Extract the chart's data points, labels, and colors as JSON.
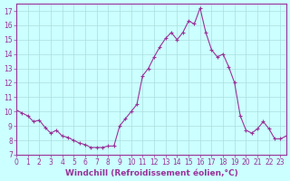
{
  "x": [
    0,
    0.5,
    1,
    1.5,
    2,
    2.5,
    3,
    3.5,
    4,
    4.5,
    5,
    5.5,
    6,
    6.5,
    7,
    7.5,
    8,
    8.5,
    9,
    9.5,
    10,
    10.5,
    11,
    11.5,
    12,
    12.5,
    13,
    13.5,
    14,
    14.5,
    15,
    15.5,
    16,
    16.5,
    17,
    17.5,
    18,
    18.5,
    19,
    19.5,
    20,
    20.5,
    21,
    21.5,
    22,
    22.5,
    23,
    23.5
  ],
  "y": [
    10.1,
    9.9,
    9.7,
    9.3,
    9.4,
    8.9,
    8.5,
    8.7,
    8.3,
    8.2,
    8.0,
    7.8,
    7.7,
    7.5,
    7.5,
    7.5,
    7.6,
    7.6,
    9.0,
    9.5,
    10.0,
    10.5,
    12.5,
    13.0,
    13.8,
    14.5,
    15.1,
    15.5,
    15.0,
    15.5,
    16.3,
    16.1,
    17.2,
    15.5,
    14.3,
    13.8,
    14.0,
    13.1,
    12.0,
    9.7,
    8.7,
    8.5,
    8.8,
    9.3,
    8.8,
    8.1,
    8.1,
    8.3
  ],
  "xlim": [
    0,
    23.5
  ],
  "ylim": [
    7,
    17.5
  ],
  "xticks": [
    0,
    1,
    2,
    3,
    4,
    5,
    6,
    7,
    8,
    9,
    10,
    11,
    12,
    13,
    14,
    15,
    16,
    17,
    18,
    19,
    20,
    21,
    22,
    23
  ],
  "yticks": [
    7,
    8,
    9,
    10,
    11,
    12,
    13,
    14,
    15,
    16,
    17
  ],
  "xlabel": "Windchill (Refroidissement éolien,°C)",
  "line_color": "#993399",
  "marker_color": "#993399",
  "bg_color": "#ccffff",
  "grid_color": "#aadddd",
  "tick_color": "#993399",
  "label_color": "#993399",
  "tick_fontsize": 5.5,
  "xlabel_fontsize": 6.5
}
